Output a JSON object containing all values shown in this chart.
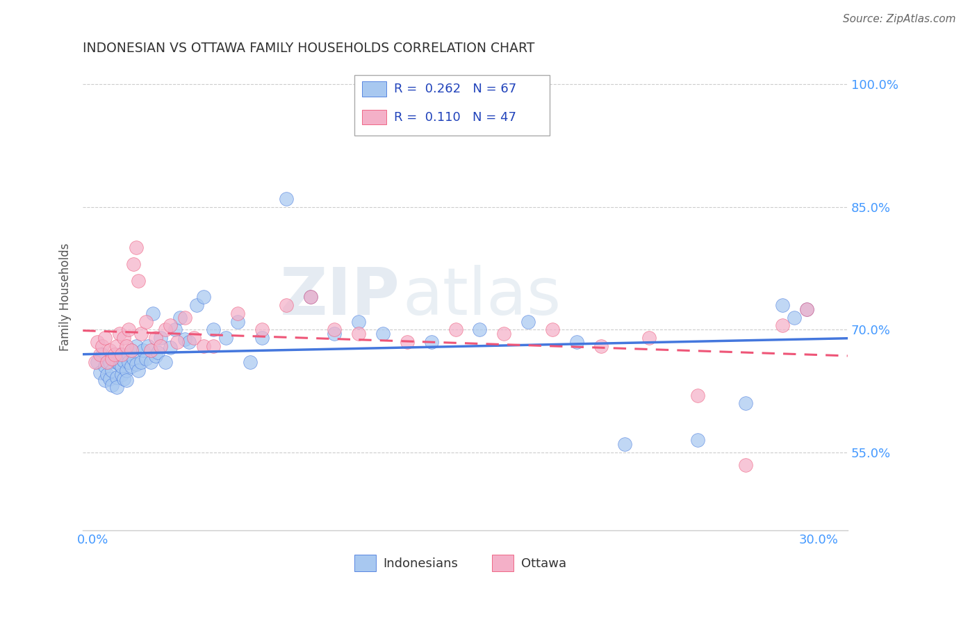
{
  "title": "INDONESIAN VS OTTAWA FAMILY HOUSEHOLDS CORRELATION CHART",
  "source": "Source: ZipAtlas.com",
  "ylabel": "Family Households",
  "xlim": [
    -0.004,
    0.312
  ],
  "ylim": [
    0.455,
    1.025
  ],
  "yticks": [
    0.55,
    0.7,
    0.85,
    1.0
  ],
  "ytick_labels": [
    "55.0%",
    "70.0%",
    "85.0%",
    "100.0%"
  ],
  "xticks": [
    0.0,
    0.075,
    0.15,
    0.225,
    0.3
  ],
  "xtick_labels": [
    "0.0%",
    "",
    "",
    "",
    "30.0%"
  ],
  "watermark_line1": "ZIP",
  "watermark_line2": "atlas",
  "legend_r_blue": "0.262",
  "legend_n_blue": "67",
  "legend_r_pink": "0.110",
  "legend_n_pink": "47",
  "blue_fill": "#A8C8F0",
  "pink_fill": "#F4B0C8",
  "line_blue": "#4477DD",
  "line_pink": "#EE5577",
  "tick_color": "#4499FF",
  "title_color": "#333333",
  "source_color": "#666666",
  "indo_x": [
    0.002,
    0.003,
    0.004,
    0.005,
    0.005,
    0.006,
    0.007,
    0.007,
    0.008,
    0.008,
    0.009,
    0.01,
    0.01,
    0.01,
    0.011,
    0.011,
    0.012,
    0.012,
    0.013,
    0.013,
    0.014,
    0.014,
    0.015,
    0.015,
    0.016,
    0.016,
    0.017,
    0.018,
    0.018,
    0.019,
    0.02,
    0.021,
    0.022,
    0.023,
    0.024,
    0.025,
    0.026,
    0.027,
    0.028,
    0.03,
    0.032,
    0.034,
    0.036,
    0.038,
    0.04,
    0.043,
    0.046,
    0.05,
    0.055,
    0.06,
    0.065,
    0.07,
    0.08,
    0.09,
    0.1,
    0.11,
    0.12,
    0.14,
    0.16,
    0.18,
    0.2,
    0.22,
    0.25,
    0.27,
    0.285,
    0.29,
    0.295
  ],
  "indo_y": [
    0.66,
    0.648,
    0.67,
    0.638,
    0.655,
    0.645,
    0.66,
    0.64,
    0.65,
    0.632,
    0.665,
    0.66,
    0.642,
    0.63,
    0.658,
    0.67,
    0.645,
    0.655,
    0.662,
    0.64,
    0.65,
    0.638,
    0.67,
    0.66,
    0.675,
    0.655,
    0.665,
    0.658,
    0.68,
    0.65,
    0.66,
    0.675,
    0.665,
    0.68,
    0.66,
    0.72,
    0.668,
    0.672,
    0.69,
    0.66,
    0.678,
    0.7,
    0.715,
    0.688,
    0.685,
    0.73,
    0.74,
    0.7,
    0.69,
    0.71,
    0.66,
    0.69,
    0.86,
    0.74,
    0.695,
    0.71,
    0.695,
    0.685,
    0.7,
    0.71,
    0.685,
    0.56,
    0.565,
    0.61,
    0.73,
    0.715,
    0.725
  ],
  "ott_x": [
    0.001,
    0.002,
    0.003,
    0.004,
    0.005,
    0.006,
    0.007,
    0.008,
    0.009,
    0.01,
    0.011,
    0.012,
    0.013,
    0.014,
    0.015,
    0.016,
    0.017,
    0.018,
    0.019,
    0.02,
    0.022,
    0.024,
    0.026,
    0.028,
    0.03,
    0.032,
    0.035,
    0.038,
    0.042,
    0.046,
    0.05,
    0.06,
    0.07,
    0.08,
    0.09,
    0.1,
    0.11,
    0.13,
    0.15,
    0.17,
    0.19,
    0.21,
    0.23,
    0.25,
    0.27,
    0.285,
    0.295
  ],
  "ott_y": [
    0.66,
    0.685,
    0.67,
    0.68,
    0.69,
    0.66,
    0.675,
    0.665,
    0.67,
    0.68,
    0.695,
    0.67,
    0.69,
    0.68,
    0.7,
    0.675,
    0.78,
    0.8,
    0.76,
    0.695,
    0.71,
    0.675,
    0.69,
    0.68,
    0.7,
    0.705,
    0.685,
    0.715,
    0.69,
    0.68,
    0.68,
    0.72,
    0.7,
    0.73,
    0.74,
    0.7,
    0.695,
    0.685,
    0.7,
    0.695,
    0.7,
    0.68,
    0.69,
    0.62,
    0.535,
    0.705,
    0.725
  ]
}
